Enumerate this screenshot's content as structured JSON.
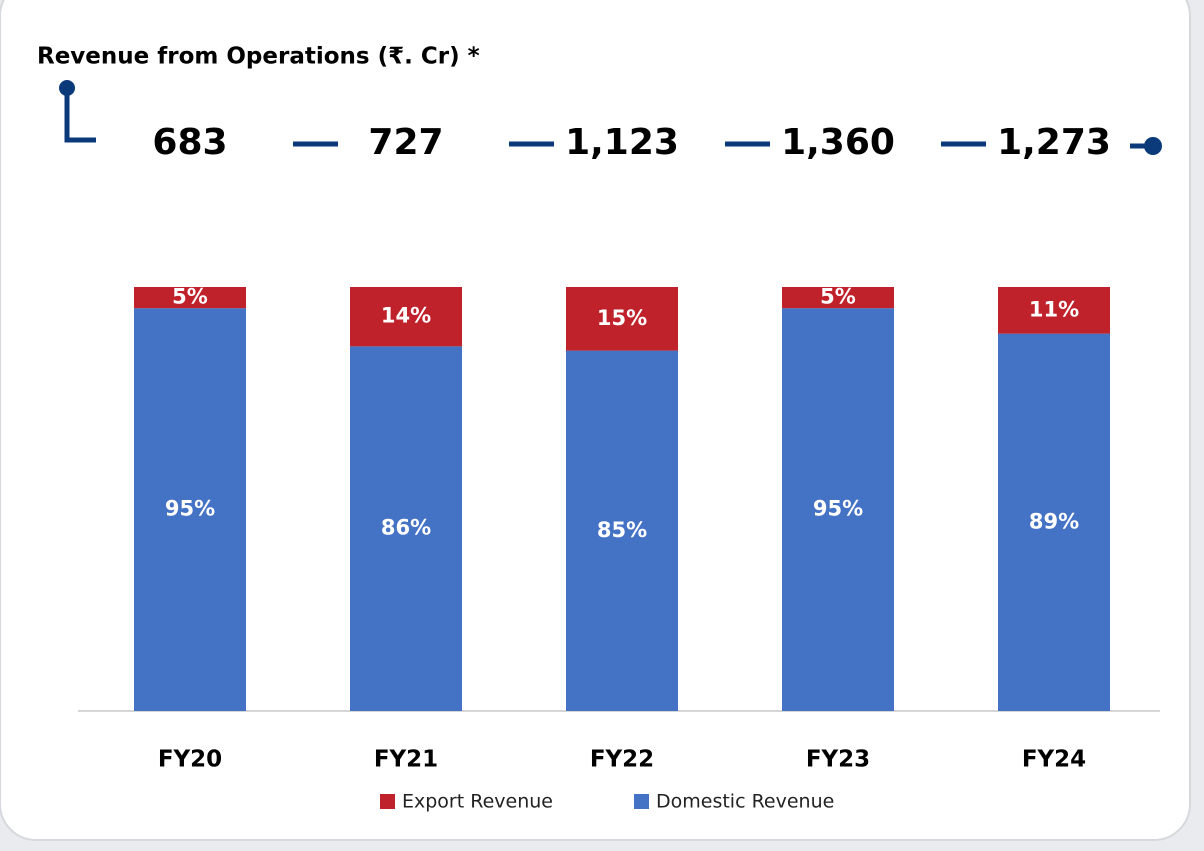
{
  "chart_data": {
    "type": "stacked_bar",
    "title": "Revenue from Operations (₹. Cr) *",
    "categories": [
      "FY20",
      "FY21",
      "FY22",
      "FY23",
      "FY24"
    ],
    "totals": {
      "values": [
        683,
        727,
        1123,
        1360,
        1273
      ],
      "value_labels": [
        "683",
        "727",
        "1,123",
        "1,360",
        "1,273"
      ]
    },
    "series": [
      {
        "name": "Export Revenue",
        "color": "#c0222b",
        "values": [
          5,
          14,
          15,
          5,
          11
        ],
        "value_labels": [
          "5%",
          "14%",
          "15%",
          "5%",
          "11%"
        ]
      },
      {
        "name": "Domestic Revenue",
        "color": "#4472c4",
        "values": [
          95,
          86,
          85,
          95,
          89
        ],
        "value_labels": [
          "95%",
          "86%",
          "85%",
          "95%",
          "89%"
        ]
      }
    ],
    "legend": "bottom"
  }
}
